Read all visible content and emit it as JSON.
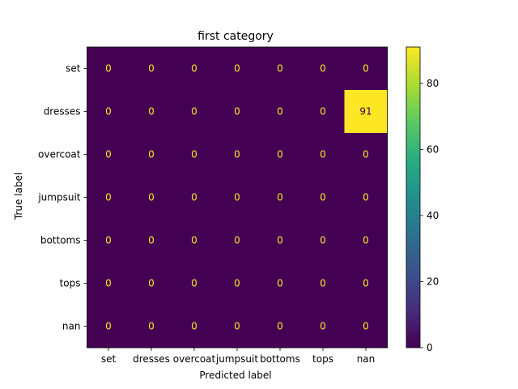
{
  "chart_data": {
    "type": "heatmap",
    "title": "first category",
    "xlabel": "Predicted label",
    "ylabel": "True label",
    "x_categories": [
      "set",
      "dresses",
      "overcoat",
      "jumpsuit",
      "bottoms",
      "tops",
      "nan"
    ],
    "y_categories": [
      "set",
      "dresses",
      "overcoat",
      "jumpsuit",
      "bottoms",
      "tops",
      "nan"
    ],
    "values": [
      [
        0,
        0,
        0,
        0,
        0,
        0,
        0
      ],
      [
        0,
        0,
        0,
        0,
        0,
        0,
        91
      ],
      [
        0,
        0,
        0,
        0,
        0,
        0,
        0
      ],
      [
        0,
        0,
        0,
        0,
        0,
        0,
        0
      ],
      [
        0,
        0,
        0,
        0,
        0,
        0,
        0
      ],
      [
        0,
        0,
        0,
        0,
        0,
        0,
        0
      ],
      [
        0,
        0,
        0,
        0,
        0,
        0,
        0
      ]
    ],
    "colormap": "viridis",
    "colorbar": {
      "range": [
        0,
        91
      ],
      "ticks": [
        0,
        20,
        40,
        60,
        80
      ]
    },
    "colors": {
      "low": "#440154",
      "high": "#fde725",
      "annotation_on_low": "#fde725",
      "annotation_on_high": "#440154"
    }
  }
}
